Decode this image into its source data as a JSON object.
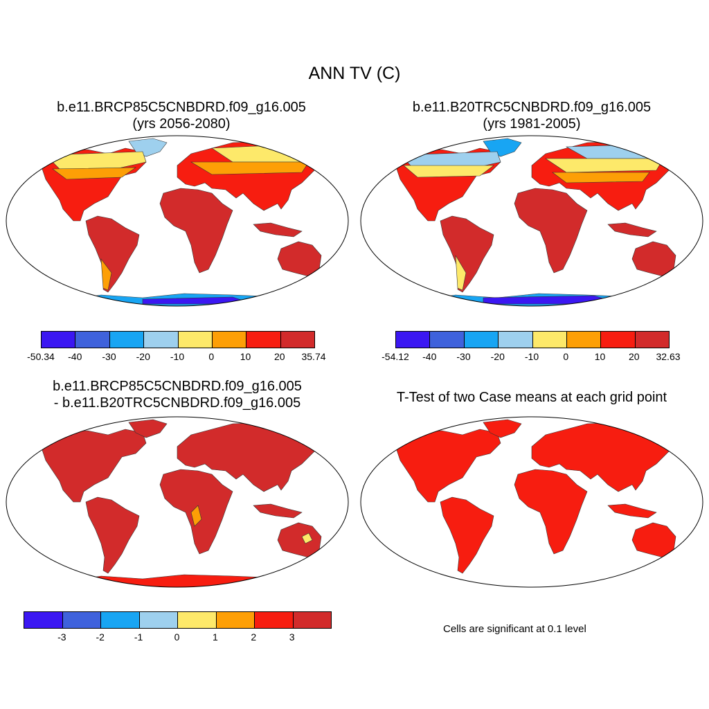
{
  "title": "ANN TV (C)",
  "panels": {
    "top_left": {
      "line1": "b.e11.BRCP85C5CNBDRD.f09_g16.005",
      "line2": "(yrs 2056-2080)",
      "colorbar": {
        "colors": [
          "#3b17f2",
          "#3f62dc",
          "#18a5f3",
          "#9ed0ee",
          "#fde96a",
          "#fd9f06",
          "#f71d10",
          "#d22b2b"
        ],
        "labels": [
          "-50.34",
          "-40",
          "-30",
          "-20",
          "-10",
          "0",
          "10",
          "20",
          "35.74"
        ]
      }
    },
    "top_right": {
      "line1": "b.e11.B20TRC5CNBDRD.f09_g16.005",
      "line2": "(yrs 1981-2005)",
      "colorbar": {
        "colors": [
          "#3b17f2",
          "#3f62dc",
          "#18a5f3",
          "#9ed0ee",
          "#fde96a",
          "#fd9f06",
          "#f71d10",
          "#d22b2b"
        ],
        "labels": [
          "-54.12",
          "-40",
          "-30",
          "-20",
          "-10",
          "0",
          "10",
          "20",
          "32.63"
        ]
      }
    },
    "bottom_left": {
      "line1": "b.e11.BRCP85C5CNBDRD.f09_g16.005",
      "line2": "- b.e11.B20TRC5CNBDRD.f09_g16.005",
      "colorbar": {
        "colors": [
          "#3b17f2",
          "#3f62dc",
          "#18a5f3",
          "#9ed0ee",
          "#fde96a",
          "#fd9f06",
          "#f71d10",
          "#d22b2b"
        ],
        "labels": [
          "-3",
          "-2",
          "-1",
          "0",
          "1",
          "2",
          "3"
        ]
      }
    },
    "bottom_right": {
      "line1": "T-Test of two Case means at each grid point",
      "note": "Cells are significant at 0.1 level"
    }
  },
  "colors": {
    "land_dark_red": "#d22b2b",
    "land_red": "#f71d10",
    "orange": "#fd9f06",
    "yellow": "#fde96a",
    "light_blue": "#9ed0ee",
    "blue": "#18a5f3",
    "dark_blue": "#3b17f2"
  }
}
